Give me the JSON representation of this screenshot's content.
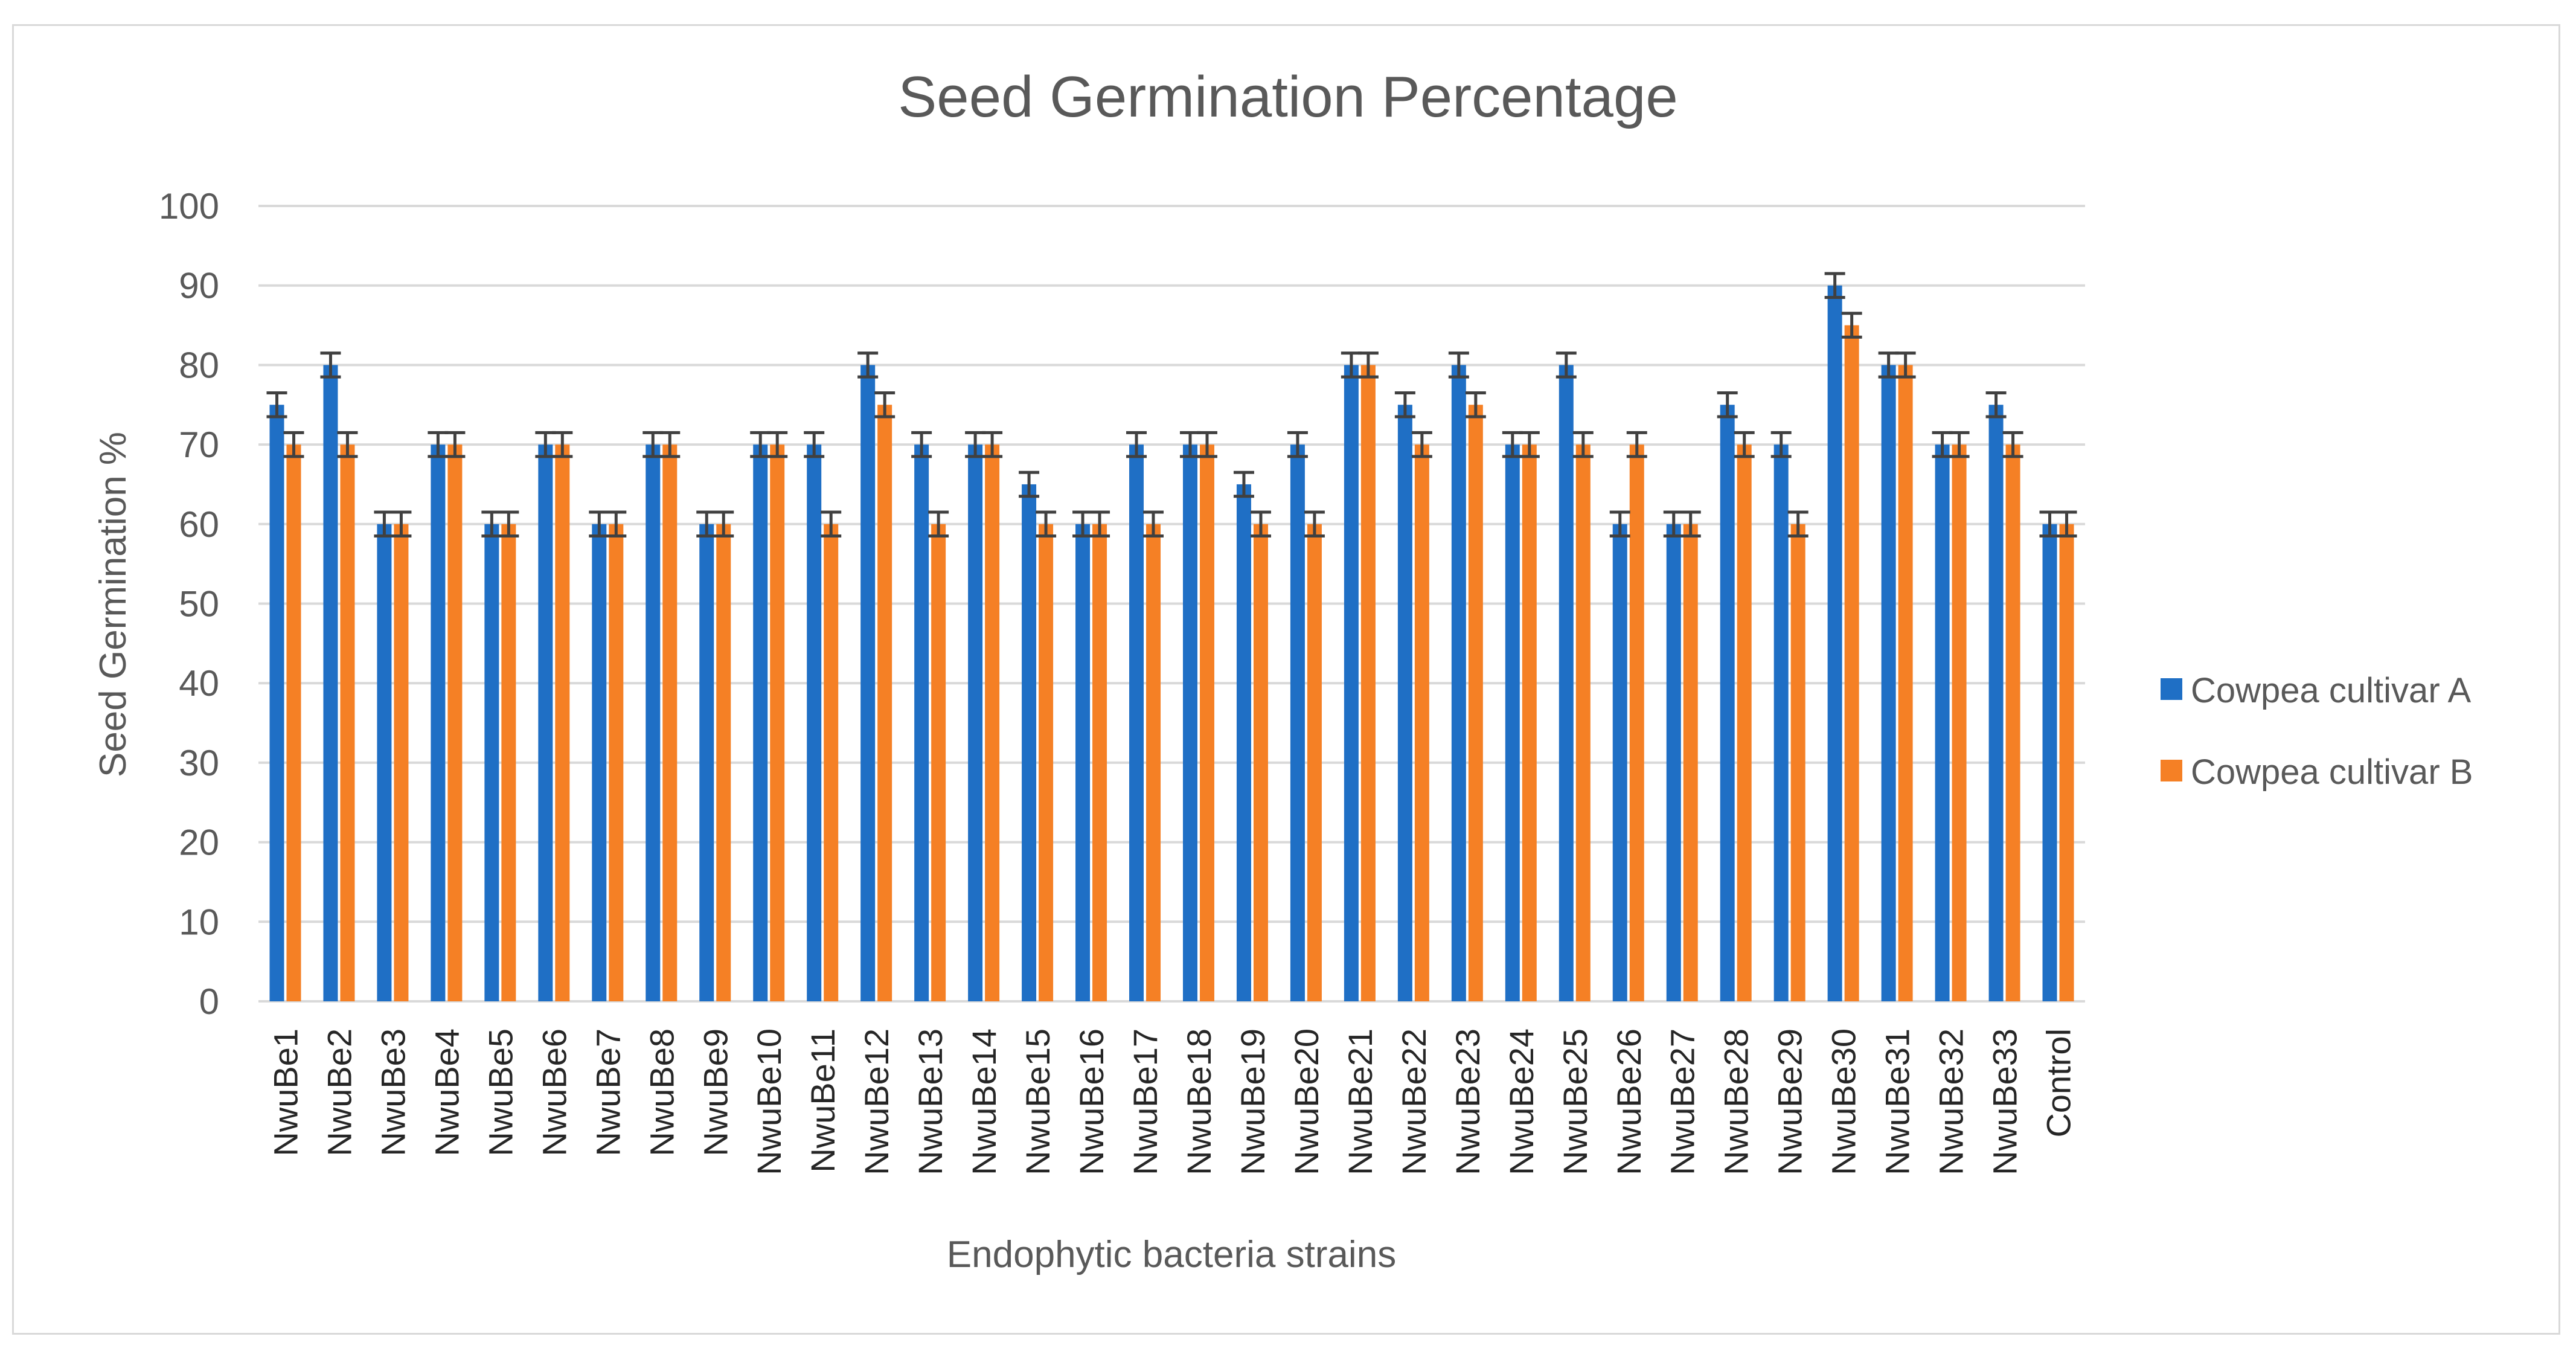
{
  "chart_data": {
    "type": "bar",
    "title": "Seed Germination Percentage",
    "xlabel": "Endophytic bacteria strains",
    "ylabel": "Seed Germination %",
    "ylim": [
      0,
      100
    ],
    "yticks": [
      0,
      10,
      20,
      30,
      40,
      50,
      60,
      70,
      80,
      90,
      100
    ],
    "grid": true,
    "legend_position": "right",
    "error_bar": 1.5,
    "categories": [
      "NwuBe1",
      "NwuBe2",
      "NwuBe3",
      "NwuBe4",
      "NwuBe5",
      "NwuBe6",
      "NwuBe7",
      "NwuBe8",
      "NwuBe9",
      "NwuBe10",
      "NwuBe11",
      "NwuBe12",
      "NwuBe13",
      "NwuBe14",
      "NwuBe15",
      "NwuBe16",
      "NwuBe17",
      "NwuBe18",
      "NwuBe19",
      "NwuBe20",
      "NwuBe21",
      "NwuBe22",
      "NwuBe23",
      "NwuBe24",
      "NwuBe25",
      "NwuBe26",
      "NwuBe27",
      "NwuBe28",
      "NwuBe29",
      "NwuBe30",
      "NwuBe31",
      "NwuBe32",
      "NwuBe33",
      "Control"
    ],
    "series": [
      {
        "name": "Cowpea cultivar A",
        "color": "#1f6fc5",
        "values": [
          75,
          80,
          60,
          70,
          60,
          70,
          60,
          70,
          60,
          70,
          70,
          80,
          70,
          70,
          65,
          60,
          70,
          70,
          65,
          70,
          80,
          75,
          80,
          70,
          80,
          60,
          60,
          75,
          70,
          90,
          80,
          70,
          75,
          60
        ]
      },
      {
        "name": "Cowpea cultivar B",
        "color": "#f58025",
        "values": [
          70,
          70,
          60,
          70,
          60,
          70,
          60,
          70,
          60,
          70,
          60,
          75,
          60,
          70,
          60,
          60,
          60,
          70,
          60,
          60,
          80,
          70,
          75,
          70,
          70,
          70,
          60,
          70,
          60,
          85,
          80,
          70,
          70,
          60
        ]
      }
    ]
  }
}
